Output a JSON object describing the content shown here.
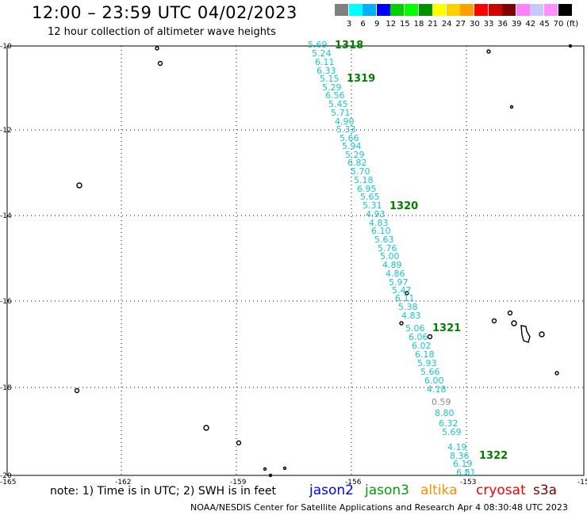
{
  "header": {
    "title": "12:00 – 23:59 UTC 04/02/2023",
    "subtitle": "12 hour collection of altimeter wave heights"
  },
  "legend": {
    "colors": [
      "#808080",
      "#00ffff",
      "#00b0ff",
      "#0000ff",
      "#00d000",
      "#00ff00",
      "#009000",
      "#ffff00",
      "#ffd000",
      "#ffa000",
      "#ff0000",
      "#d00000",
      "#800000",
      "#ff80ff",
      "#c8c8ff",
      "#ff90ff",
      "#000000"
    ],
    "labels": [
      "3",
      "6",
      "9",
      "12",
      "15",
      "18",
      "21",
      "24",
      "27",
      "30",
      "33",
      "36",
      "39",
      "42",
      "45",
      "70",
      "(ft)"
    ]
  },
  "axes": {
    "lon_ticks": [
      "-165",
      "-162",
      "-159",
      "-156",
      "-153",
      "-15"
    ],
    "lat_ticks": [
      "-10",
      "-12",
      "-14",
      "-16",
      "-18",
      "-20"
    ]
  },
  "track": {
    "swh_values": [
      "5.69",
      "5.24",
      "6.11",
      "6.33",
      "5.15",
      "5.29",
      "6.56",
      "5.45",
      "5.71",
      "4.90",
      "5.33",
      "5.66",
      "5.94",
      "5.29",
      "6.82",
      "5.70",
      "5.18",
      "6.95",
      "5.65",
      "5.31",
      "4.93",
      "4.83",
      "6.10",
      "5.63",
      "5.76",
      "5.00",
      "4.89",
      "4.86",
      "5.97",
      "5.47",
      "6.11",
      "5.38",
      "4.83",
      "5.06",
      "6.06",
      "6.02",
      "6.18",
      "5.93",
      "5.66",
      "6.00",
      "4.18",
      "0.59",
      "8.80",
      "6.32",
      "5.69",
      "4.19",
      "8.36",
      "6.19",
      "6.81"
    ],
    "orbits": [
      "1318",
      "1319",
      "1320",
      "1321",
      "1322"
    ]
  },
  "footer": {
    "note": "note: 1) Time is in UTC; 2) SWH is in feet",
    "satellites": [
      {
        "name": "jason2",
        "color": "#0000ff"
      },
      {
        "name": "jason3",
        "color": "#00a000"
      },
      {
        "name": "altika",
        "color": "#ff9000"
      },
      {
        "name": "cryosat",
        "color": "#ff0000"
      },
      {
        "name": "s3a",
        "color": "#800000"
      }
    ],
    "credit": "NOAA/NESDIS Center for Satellite Applications and Research   Apr  4 08:30:48 UTC 2023"
  }
}
